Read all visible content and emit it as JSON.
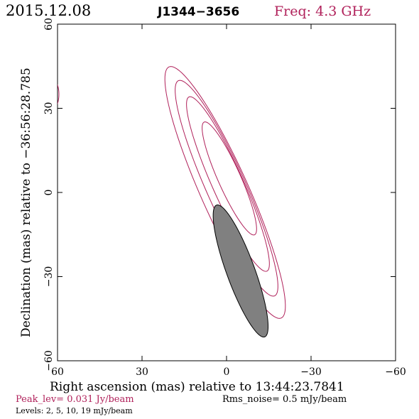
{
  "header": {
    "date": "2015.12.08",
    "source": "J1344−3656",
    "frequency": "Freq: 4.3 GHz"
  },
  "footer": {
    "peak_level": "Peak_lev=  0.031 Jy/beam",
    "rms_noise": "Rms_noise=   0.5 mJy/beam",
    "levels": "Levels:   2,   5,  10,  19 mJy/beam"
  },
  "colors": {
    "contour": "#b0205a",
    "beam_fill": "#808080",
    "axis": "#000000"
  },
  "chart_data": {
    "type": "contour",
    "xlabel": "Right ascension (mas) relative to 13:44:23.7841",
    "ylabel": "Declination (mas) relative to −36:56:28.785",
    "xlim": [
      60,
      -60
    ],
    "ylim": [
      -60,
      60
    ],
    "xticks": [
      60,
      30,
      0,
      -30,
      -60
    ],
    "yticks": [
      -60,
      -30,
      0,
      30,
      60
    ],
    "xtick_labels": [
      "60",
      "30",
      "0",
      "−30",
      "−60"
    ],
    "ytick_labels": [
      "−60",
      "−30",
      "0",
      "30",
      "60"
    ],
    "contour_levels_mJy": [
      2,
      5,
      10,
      19
    ],
    "contours": [
      {
        "level": 2,
        "center": [
          0.5,
          0.0
        ],
        "semi_major": 49,
        "semi_minor": 8.5,
        "pa_deg": 24
      },
      {
        "level": 5,
        "center": [
          0.0,
          1.5
        ],
        "semi_major": 42,
        "semi_minor": 7.0,
        "pa_deg": 24
      },
      {
        "level": 10,
        "center": [
          -0.5,
          3.0
        ],
        "semi_major": 34,
        "semi_minor": 5.5,
        "pa_deg": 24
      },
      {
        "level": 19,
        "center": [
          -1.0,
          5.0
        ],
        "semi_major": 22,
        "semi_minor": 4.0,
        "pa_deg": 24
      }
    ],
    "edge_contour": {
      "level": 2,
      "center": [
        62,
        35
      ],
      "semi_major": 5.5,
      "semi_minor": 2.5,
      "pa_deg": 0
    },
    "beam": {
      "center": [
        -5,
        -28
      ],
      "semi_major": 25,
      "semi_minor": 5,
      "pa_deg": 20
    }
  }
}
